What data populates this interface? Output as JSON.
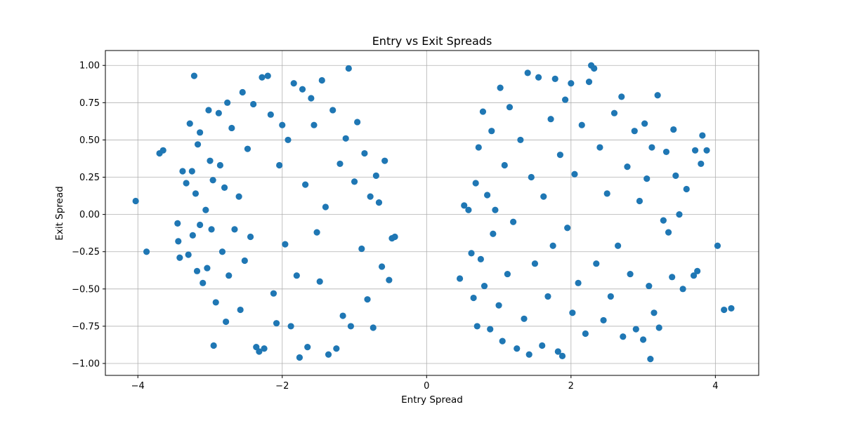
{
  "chart_data": {
    "type": "scatter",
    "title": "Entry vs Exit Spreads",
    "xlabel": "Entry Spread",
    "ylabel": "Exit Spread",
    "xlim": [
      -4.45,
      4.6
    ],
    "ylim": [
      -1.08,
      1.1
    ],
    "grid": true,
    "marker_color": "#1f77b4",
    "x_ticks": [
      {
        "value": -4,
        "label": "−4"
      },
      {
        "value": -2,
        "label": "−2"
      },
      {
        "value": 0,
        "label": "0"
      },
      {
        "value": 2,
        "label": "2"
      },
      {
        "value": 4,
        "label": "4"
      }
    ],
    "y_ticks": [
      {
        "value": -1.0,
        "label": "−1.00"
      },
      {
        "value": -0.75,
        "label": "−0.75"
      },
      {
        "value": -0.5,
        "label": "−0.50"
      },
      {
        "value": -0.25,
        "label": "−0.25"
      },
      {
        "value": 0.0,
        "label": "0.00"
      },
      {
        "value": 0.25,
        "label": "0.25"
      },
      {
        "value": 0.5,
        "label": "0.50"
      },
      {
        "value": 0.75,
        "label": "0.75"
      },
      {
        "value": 1.0,
        "label": "1.00"
      }
    ],
    "points": [
      [
        -4.03,
        0.09
      ],
      [
        -3.88,
        -0.25
      ],
      [
        -3.7,
        0.41
      ],
      [
        -3.65,
        0.43
      ],
      [
        -3.45,
        -0.06
      ],
      [
        -3.44,
        -0.18
      ],
      [
        -3.42,
        -0.29
      ],
      [
        -3.38,
        0.29
      ],
      [
        -3.33,
        0.21
      ],
      [
        -3.3,
        -0.27
      ],
      [
        -3.28,
        0.61
      ],
      [
        -3.25,
        0.29
      ],
      [
        -3.24,
        -0.14
      ],
      [
        -3.22,
        0.93
      ],
      [
        -3.2,
        0.14
      ],
      [
        -3.18,
        -0.38
      ],
      [
        -3.17,
        0.47
      ],
      [
        -3.14,
        0.55
      ],
      [
        -3.14,
        -0.07
      ],
      [
        -3.1,
        -0.46
      ],
      [
        -3.06,
        0.03
      ],
      [
        -3.04,
        -0.36
      ],
      [
        -3.02,
        0.7
      ],
      [
        -3.0,
        0.36
      ],
      [
        -2.98,
        -0.1
      ],
      [
        -2.96,
        0.23
      ],
      [
        -2.95,
        -0.88
      ],
      [
        -2.92,
        -0.59
      ],
      [
        -2.88,
        0.68
      ],
      [
        -2.86,
        0.33
      ],
      [
        -2.83,
        -0.25
      ],
      [
        -2.8,
        0.18
      ],
      [
        -2.78,
        -0.72
      ],
      [
        -2.76,
        0.75
      ],
      [
        -2.74,
        -0.41
      ],
      [
        -2.7,
        0.58
      ],
      [
        -2.66,
        -0.1
      ],
      [
        -2.6,
        0.12
      ],
      [
        -2.58,
        -0.64
      ],
      [
        -2.55,
        0.82
      ],
      [
        -2.52,
        -0.31
      ],
      [
        -2.48,
        0.44
      ],
      [
        -2.44,
        -0.15
      ],
      [
        -2.4,
        0.74
      ],
      [
        -2.36,
        -0.89
      ],
      [
        -2.32,
        -0.92
      ],
      [
        -2.28,
        0.92
      ],
      [
        -2.25,
        -0.9
      ],
      [
        -2.2,
        0.93
      ],
      [
        -2.16,
        0.67
      ],
      [
        -2.12,
        -0.53
      ],
      [
        -2.08,
        -0.73
      ],
      [
        -2.04,
        0.33
      ],
      [
        -2.0,
        0.6
      ],
      [
        -1.96,
        -0.2
      ],
      [
        -1.92,
        0.5
      ],
      [
        -1.88,
        -0.75
      ],
      [
        -1.84,
        0.88
      ],
      [
        -1.8,
        -0.41
      ],
      [
        -1.76,
        -0.96
      ],
      [
        -1.72,
        0.84
      ],
      [
        -1.68,
        0.2
      ],
      [
        -1.65,
        -0.89
      ],
      [
        -1.6,
        0.78
      ],
      [
        -1.56,
        0.6
      ],
      [
        -1.52,
        -0.12
      ],
      [
        -1.48,
        -0.45
      ],
      [
        -1.45,
        0.9
      ],
      [
        -1.4,
        0.05
      ],
      [
        -1.36,
        -0.94
      ],
      [
        -1.3,
        0.7
      ],
      [
        -1.25,
        -0.9
      ],
      [
        -1.2,
        0.34
      ],
      [
        -1.16,
        -0.68
      ],
      [
        -1.12,
        0.51
      ],
      [
        -1.08,
        0.98
      ],
      [
        -1.05,
        -0.75
      ],
      [
        -1.0,
        0.22
      ],
      [
        -0.96,
        0.62
      ],
      [
        -0.9,
        -0.23
      ],
      [
        -0.86,
        0.41
      ],
      [
        -0.82,
        -0.57
      ],
      [
        -0.78,
        0.12
      ],
      [
        -0.74,
        -0.76
      ],
      [
        -0.7,
        0.26
      ],
      [
        -0.66,
        0.08
      ],
      [
        -0.62,
        -0.35
      ],
      [
        -0.58,
        0.36
      ],
      [
        -0.52,
        -0.44
      ],
      [
        -0.48,
        -0.16
      ],
      [
        -0.44,
        -0.15
      ],
      [
        0.46,
        -0.43
      ],
      [
        0.52,
        0.06
      ],
      [
        0.58,
        0.03
      ],
      [
        0.62,
        -0.26
      ],
      [
        0.65,
        -0.56
      ],
      [
        0.68,
        0.21
      ],
      [
        0.7,
        -0.75
      ],
      [
        0.72,
        0.45
      ],
      [
        0.75,
        -0.3
      ],
      [
        0.78,
        0.69
      ],
      [
        0.8,
        -0.48
      ],
      [
        0.84,
        0.13
      ],
      [
        0.88,
        -0.77
      ],
      [
        0.9,
        0.56
      ],
      [
        0.92,
        -0.13
      ],
      [
        0.95,
        0.03
      ],
      [
        1.0,
        -0.61
      ],
      [
        1.02,
        0.85
      ],
      [
        1.05,
        -0.85
      ],
      [
        1.08,
        0.33
      ],
      [
        1.12,
        -0.4
      ],
      [
        1.15,
        0.72
      ],
      [
        1.2,
        -0.05
      ],
      [
        1.25,
        -0.9
      ],
      [
        1.3,
        0.5
      ],
      [
        1.35,
        -0.7
      ],
      [
        1.4,
        0.95
      ],
      [
        1.42,
        -0.94
      ],
      [
        1.45,
        0.25
      ],
      [
        1.5,
        -0.33
      ],
      [
        1.55,
        0.92
      ],
      [
        1.6,
        -0.88
      ],
      [
        1.62,
        0.12
      ],
      [
        1.68,
        -0.55
      ],
      [
        1.72,
        0.64
      ],
      [
        1.75,
        -0.21
      ],
      [
        1.78,
        0.91
      ],
      [
        1.82,
        -0.92
      ],
      [
        1.85,
        0.4
      ],
      [
        1.88,
        -0.95
      ],
      [
        1.92,
        0.77
      ],
      [
        1.95,
        -0.09
      ],
      [
        2.0,
        0.88
      ],
      [
        2.02,
        -0.66
      ],
      [
        2.05,
        0.27
      ],
      [
        2.1,
        -0.46
      ],
      [
        2.15,
        0.6
      ],
      [
        2.2,
        -0.8
      ],
      [
        2.25,
        0.89
      ],
      [
        2.28,
        1.0
      ],
      [
        2.32,
        0.98
      ],
      [
        2.35,
        -0.33
      ],
      [
        2.4,
        0.45
      ],
      [
        2.45,
        -0.71
      ],
      [
        2.5,
        0.14
      ],
      [
        2.55,
        -0.55
      ],
      [
        2.6,
        0.68
      ],
      [
        2.65,
        -0.21
      ],
      [
        2.7,
        0.79
      ],
      [
        2.72,
        -0.82
      ],
      [
        2.78,
        0.32
      ],
      [
        2.82,
        -0.4
      ],
      [
        2.88,
        0.56
      ],
      [
        2.9,
        -0.77
      ],
      [
        2.95,
        0.09
      ],
      [
        3.0,
        -0.84
      ],
      [
        3.02,
        0.61
      ],
      [
        3.05,
        0.24
      ],
      [
        3.08,
        -0.48
      ],
      [
        3.1,
        -0.97
      ],
      [
        3.12,
        0.45
      ],
      [
        3.15,
        -0.66
      ],
      [
        3.2,
        0.8
      ],
      [
        3.22,
        -0.76
      ],
      [
        3.28,
        -0.04
      ],
      [
        3.32,
        0.42
      ],
      [
        3.35,
        -0.12
      ],
      [
        3.4,
        -0.42
      ],
      [
        3.42,
        0.57
      ],
      [
        3.45,
        0.26
      ],
      [
        3.5,
        0.0
      ],
      [
        3.55,
        -0.5
      ],
      [
        3.6,
        0.17
      ],
      [
        3.7,
        -0.41
      ],
      [
        3.72,
        0.43
      ],
      [
        3.75,
        -0.38
      ],
      [
        3.8,
        0.34
      ],
      [
        3.82,
        0.53
      ],
      [
        3.88,
        0.43
      ],
      [
        4.03,
        -0.21
      ],
      [
        4.12,
        -0.64
      ],
      [
        4.22,
        -0.63
      ]
    ]
  }
}
